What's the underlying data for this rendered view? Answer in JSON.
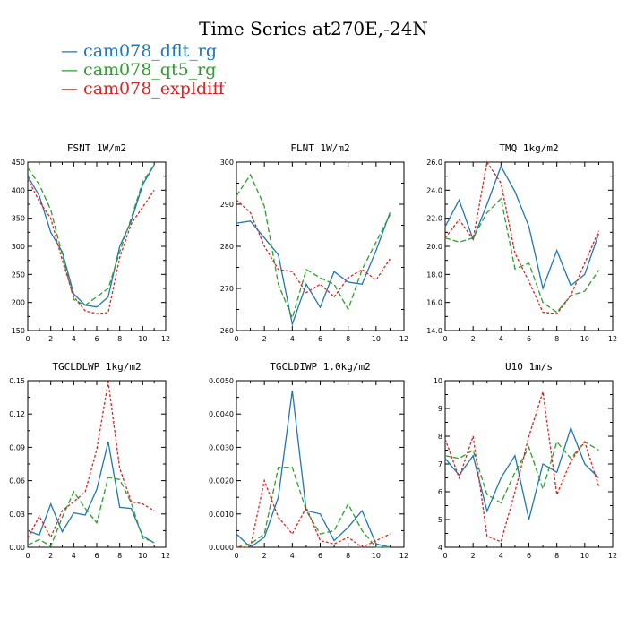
{
  "title": "Time Series at270E,-24N",
  "legend": [
    {
      "label": "cam078_dflt_rg",
      "color": "#1f77b4"
    },
    {
      "label": "cam078_qt5_rg",
      "color": "#2ca02c"
    },
    {
      "label": "cam078_expldiff",
      "color": "#d62728"
    }
  ],
  "chart_data": [
    {
      "type": "line",
      "title": "FSNT   1W/m2",
      "x": [
        0,
        1,
        2,
        3,
        4,
        5,
        6,
        7,
        8,
        9,
        10,
        11
      ],
      "xlim": [
        0,
        12
      ],
      "xticks": [
        "0",
        "2",
        "4",
        "6",
        "8",
        "10",
        "12"
      ],
      "ylim": [
        150,
        450
      ],
      "yticks": [
        "150",
        "200",
        "250",
        "300",
        "350",
        "400",
        "450"
      ],
      "series": [
        {
          "name": "cam078_dflt_rg",
          "values": [
            425,
            390,
            325,
            290,
            215,
            195,
            192,
            210,
            300,
            345,
            410,
            445
          ]
        },
        {
          "name": "cam078_qt5_rg",
          "values": [
            440,
            410,
            365,
            285,
            205,
            195,
            210,
            225,
            290,
            350,
            415,
            445
          ]
        },
        {
          "name": "cam078_expldiff",
          "values": [
            420,
            380,
            350,
            275,
            210,
            185,
            180,
            182,
            280,
            340,
            370,
            400
          ]
        }
      ]
    },
    {
      "type": "line",
      "title": "FLNT   1W/m2",
      "x": [
        0,
        1,
        2,
        3,
        4,
        5,
        6,
        7,
        8,
        9,
        10,
        11
      ],
      "xlim": [
        0,
        12
      ],
      "xticks": [
        "0",
        "2",
        "4",
        "6",
        "8",
        "10",
        "12"
      ],
      "ylim": [
        260,
        300
      ],
      "yticks": [
        "260",
        "270",
        "280",
        "290",
        "300"
      ],
      "series": [
        {
          "name": "cam078_dflt_rg",
          "values": [
            285.5,
            286,
            282,
            278,
            261.5,
            271,
            265.5,
            274,
            271.5,
            271,
            279,
            288
          ]
        },
        {
          "name": "cam078_qt5_rg",
          "values": [
            292,
            297,
            289.5,
            271,
            263,
            274.5,
            272.5,
            271,
            265,
            274.5,
            281,
            287.5
          ]
        },
        {
          "name": "cam078_expldiff",
          "values": [
            291,
            288,
            280,
            274.5,
            274,
            269,
            271,
            268,
            272.5,
            274.5,
            272,
            277
          ]
        }
      ]
    },
    {
      "type": "line",
      "title": "TMQ   1kg/m2",
      "x": [
        0,
        1,
        2,
        3,
        4,
        5,
        6,
        7,
        8,
        9,
        10,
        11
      ],
      "xlim": [
        0,
        12
      ],
      "xticks": [
        "0",
        "2",
        "4",
        "6",
        "8",
        "10",
        "12"
      ],
      "ylim": [
        14,
        26
      ],
      "yticks": [
        "14.0",
        "16.0",
        "18.0",
        "20.0",
        "22.0",
        "24.0",
        "26.0"
      ],
      "series": [
        {
          "name": "cam078_dflt_rg",
          "values": [
            21.4,
            23.3,
            20.5,
            23.0,
            25.7,
            23.9,
            21.4,
            17.0,
            19.7,
            17.2,
            18.0,
            20.9
          ]
        },
        {
          "name": "cam078_qt5_rg",
          "values": [
            20.6,
            20.3,
            20.6,
            22.4,
            23.4,
            18.4,
            18.8,
            16.0,
            15.3,
            16.5,
            16.8,
            18.3
          ]
        },
        {
          "name": "cam078_expldiff",
          "values": [
            20.6,
            21.9,
            20.5,
            26.0,
            24.5,
            19.5,
            17.5,
            15.3,
            15.2,
            16.5,
            18.8,
            21.1
          ]
        }
      ]
    },
    {
      "type": "line",
      "title": "TGCLDLWP   1kg/m2",
      "x": [
        0,
        1,
        2,
        3,
        4,
        5,
        6,
        7,
        8,
        9,
        10,
        11
      ],
      "xlim": [
        0,
        12
      ],
      "xticks": [
        "0",
        "2",
        "4",
        "6",
        "8",
        "10",
        "12"
      ],
      "ylim": [
        0,
        0.15
      ],
      "yticks": [
        "0.00",
        "0.03",
        "0.06",
        "0.09",
        "0.12",
        "0.15"
      ],
      "series": [
        {
          "name": "cam078_dflt_rg",
          "values": [
            0.015,
            0.011,
            0.039,
            0.014,
            0.031,
            0.029,
            0.052,
            0.095,
            0.036,
            0.035,
            0.01,
            0.004
          ]
        },
        {
          "name": "cam078_qt5_rg",
          "values": [
            0.002,
            0.007,
            0.001,
            0.027,
            0.05,
            0.035,
            0.022,
            0.063,
            0.061,
            0.04,
            0.008,
            0.005
          ]
        },
        {
          "name": "cam078_expldiff",
          "values": [
            0.008,
            0.028,
            0.009,
            0.033,
            0.041,
            0.05,
            0.088,
            0.149,
            0.071,
            0.041,
            0.039,
            0.033
          ]
        }
      ]
    },
    {
      "type": "line",
      "title": "TGCLDIWP   1.0kg/m2",
      "x": [
        0,
        1,
        2,
        3,
        4,
        5,
        6,
        7,
        8,
        9,
        10,
        11
      ],
      "xlim": [
        0,
        12
      ],
      "xticks": [
        "0",
        "2",
        "4",
        "6",
        "8",
        "10",
        "12"
      ],
      "ylim": [
        0,
        0.005
      ],
      "yticks": [
        "0.0000",
        "0.0010",
        "0.0020",
        "0.0030",
        "0.0040",
        "0.0050"
      ],
      "series": [
        {
          "name": "cam078_dflt_rg",
          "values": [
            0.0004,
            0.0,
            0.0003,
            0.0015,
            0.0047,
            0.0011,
            0.001,
            0.0002,
            0.0006,
            0.0011,
            0.0001,
            0.0
          ]
        },
        {
          "name": "cam078_qt5_rg",
          "values": [
            0.0,
            0.0001,
            0.0004,
            0.0024,
            0.0024,
            0.0011,
            0.0004,
            0.0005,
            0.0013,
            0.0005,
            0.0,
            0.0
          ]
        },
        {
          "name": "cam078_expldiff",
          "values": [
            0.0,
            0.0,
            0.002,
            0.0009,
            0.0004,
            0.0012,
            0.0002,
            0.0001,
            0.0003,
            0.0,
            0.0002,
            0.0004
          ]
        }
      ]
    },
    {
      "type": "line",
      "title": "U10   1m/s",
      "x": [
        0,
        1,
        2,
        3,
        4,
        5,
        6,
        7,
        8,
        9,
        10,
        11
      ],
      "xlim": [
        0,
        12
      ],
      "xticks": [
        "0",
        "2",
        "4",
        "6",
        "8",
        "10",
        "12"
      ],
      "ylim": [
        4,
        10
      ],
      "yticks": [
        "4",
        "5",
        "6",
        "7",
        "8",
        "9",
        "10"
      ],
      "series": [
        {
          "name": "cam078_dflt_rg",
          "values": [
            7.2,
            6.6,
            7.3,
            5.3,
            6.5,
            7.3,
            5.0,
            7.0,
            6.7,
            8.3,
            7.0,
            6.5
          ]
        },
        {
          "name": "cam078_qt5_rg",
          "values": [
            7.3,
            7.2,
            7.5,
            5.9,
            5.6,
            6.7,
            7.6,
            6.1,
            7.8,
            7.2,
            7.8,
            7.5
          ]
        },
        {
          "name": "cam078_expldiff",
          "values": [
            7.9,
            6.5,
            8.0,
            4.4,
            4.2,
            6.0,
            8.0,
            9.6,
            5.9,
            7.1,
            7.8,
            6.2
          ]
        }
      ]
    }
  ]
}
